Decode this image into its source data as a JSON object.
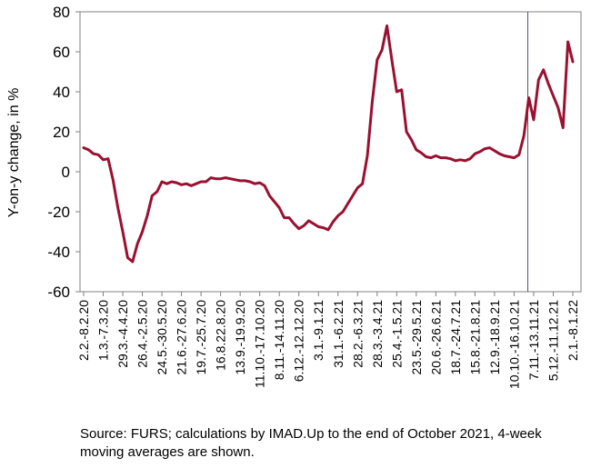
{
  "chart_data": {
    "type": "line",
    "xlabel": "",
    "ylabel": "Y-on-y change, in %",
    "ylim": [
      -60,
      80
    ],
    "yticks": [
      80,
      60,
      40,
      20,
      0,
      -20,
      -40,
      -60
    ],
    "grid": false,
    "x_tick_labels": [
      "2.2.-8.2.20",
      "1.3.-7.3.20",
      "29.3.-4.4.20",
      "26.4.-2.5.20",
      "24.5.-30.5.20",
      "21.6.-27.6.20",
      "19.7.-25.7.20",
      "16.8.22.8.20",
      "13.9.-19.9.20",
      "11.10.-17.10.20",
      "8.11.-14.11.20",
      "6.12.-12.12.20",
      "3.1.-9.1.21",
      "31.1.-6.2.21",
      "28.2.-6.3.21",
      "28.3.-3.4.21",
      "25.4.-1.5.21",
      "23.5.-29.5.21",
      "20.6.-26.6.21",
      "18.7.-24.7.21",
      "15.8.-21.8.21",
      "12.9.-18.9.21",
      "10.10.-16.10.21",
      "7.11.-13.11.21",
      "5.12.-11.12.21",
      "2.1.-8.1.22"
    ],
    "vertical_marker_after_tick": "10.10.-16.10.21",
    "series": [
      {
        "color": "#9b1030",
        "values": [
          12,
          11,
          9,
          8.5,
          6,
          6.5,
          -4,
          -18,
          -30,
          -43,
          -45,
          -36,
          -30,
          -22,
          -12,
          -10,
          -5,
          -6,
          -5,
          -5.5,
          -6.5,
          -6,
          -7,
          -6,
          -5,
          -5,
          -3,
          -3.5,
          -3.5,
          -3,
          -3.5,
          -4,
          -4.5,
          -4.5,
          -5,
          -6,
          -5.5,
          -7,
          -12,
          -15,
          -18,
          -23,
          -23,
          -26,
          -28.5,
          -27,
          -24.5,
          -26,
          -27.5,
          -28,
          -29,
          -25,
          -22,
          -20,
          -16,
          -12,
          -8,
          -6,
          8,
          35,
          56,
          61,
          73,
          56,
          40,
          41,
          20,
          16,
          11,
          9.5,
          7.5,
          7,
          8,
          7,
          7,
          6.5,
          5.5,
          6,
          5.5,
          6.5,
          9,
          10,
          11.5,
          12,
          10.5,
          9,
          8,
          7.5,
          7,
          8.5,
          18,
          37,
          26,
          46,
          51,
          44,
          38,
          32,
          22,
          65,
          55
        ]
      }
    ]
  },
  "source_note": "Source: FURS; calculations by IMAD.Up to the end of October 2021, 4-week moving averages are shown."
}
